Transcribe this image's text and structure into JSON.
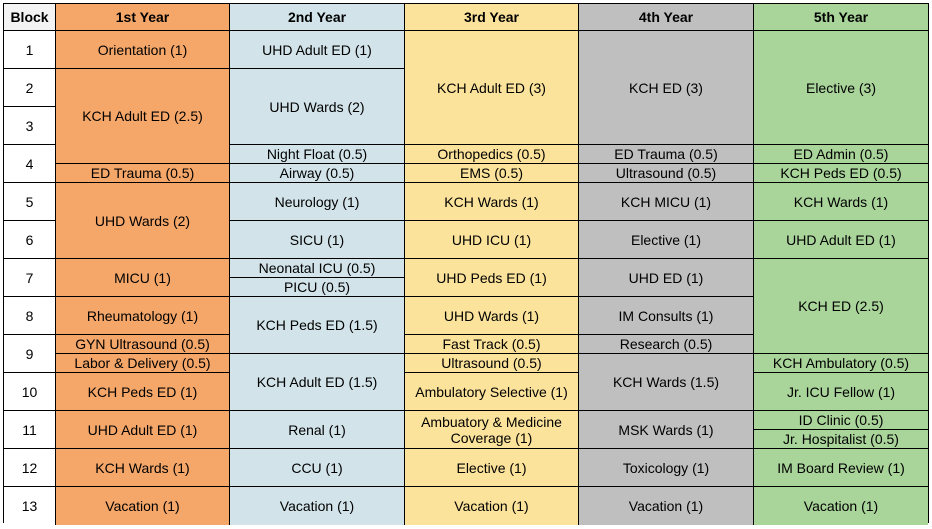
{
  "headers": [
    "Block",
    "1st Year",
    "2nd Year",
    "3rd Year",
    "4th Year",
    "5th Year"
  ],
  "blocks": [
    "1",
    "2",
    "3",
    "4",
    "5",
    "6",
    "7",
    "8",
    "9",
    "10",
    "11",
    "12",
    "13"
  ],
  "year1": {
    "orientation": "Orientation (1)",
    "kch_adult_ed": "KCH Adult ED (2.5)",
    "ed_trauma": "ED Trauma (0.5)",
    "uhd_wards": "UHD Wards (2)",
    "micu": "MICU (1)",
    "rheumatology": "Rheumatology (1)",
    "gyn_ultrasound": "GYN Ultrasound (0.5)",
    "labor_delivery": "Labor & Delivery (0.5)",
    "kch_peds_ed": "KCH Peds ED (1)",
    "uhd_adult_ed": "UHD Adult ED (1)",
    "kch_wards": "KCH Wards (1)",
    "vacation": "Vacation (1)"
  },
  "year2": {
    "uhd_adult_ed": "UHD Adult ED (1)",
    "uhd_wards": "UHD Wards (2)",
    "night_float": "Night Float (0.5)",
    "airway": "Airway (0.5)",
    "neurology": "Neurology (1)",
    "sicu": "SICU (1)",
    "neonatal_icu": "Neonatal ICU (0.5)",
    "picu": "PICU (0.5)",
    "kch_peds_ed": "KCH Peds ED (1.5)",
    "kch_adult_ed": "KCH Adult ED (1.5)",
    "renal": "Renal (1)",
    "ccu": "CCU (1)",
    "vacation": "Vacation (1)"
  },
  "year3": {
    "kch_adult_ed": "KCH Adult ED (3)",
    "orthopedics": "Orthopedics (0.5)",
    "ems": "EMS (0.5)",
    "kch_wards": "KCH Wards (1)",
    "uhd_icu": "UHD ICU (1)",
    "uhd_peds_ed": "UHD Peds ED (1)",
    "uhd_wards": "UHD Wards (1)",
    "fast_track": "Fast Track (0.5)",
    "ultrasound": "Ultrasound (0.5)",
    "ambulatory_selective": "Ambulatory Selective (1)",
    "ambulatory_medicine": "Ambuatory & Medicine Coverage (1)",
    "elective": "Elective (1)",
    "vacation": "Vacation (1)"
  },
  "year4": {
    "kch_ed": "KCH ED (3)",
    "ed_trauma": "ED Trauma (0.5)",
    "ultrasound": "Ultrasound (0.5)",
    "kch_micu": "KCH MICU (1)",
    "elective": "Elective (1)",
    "uhd_ed": "UHD ED (1)",
    "im_consults": "IM Consults (1)",
    "research": "Research (0.5)",
    "kch_wards": "KCH Wards (1.5)",
    "msk_wards": "MSK Wards (1)",
    "toxicology": "Toxicology (1)",
    "vacation": "Vacation (1)"
  },
  "year5": {
    "elective": "Elective (3)",
    "ed_admin": "ED Admin (0.5)",
    "kch_peds_ed": "KCH Peds ED (0.5)",
    "kch_wards": "KCH Wards (1)",
    "uhd_adult_ed": "UHD Adult ED (1)",
    "kch_ed": "KCH ED (2.5)",
    "kch_ambulatory": "KCH Ambulatory (0.5)",
    "jr_icu_fellow": "Jr. ICU Fellow (1)",
    "id_clinic": "ID Clinic (0.5)",
    "jr_hospitalist": "Jr. Hospitalist (0.5)",
    "im_board_review": "IM Board Review (1)",
    "vacation": "Vacation (1)"
  },
  "colors": {
    "year1": "#f5a76a",
    "year2": "#d2e4ea",
    "year3": "#fce39b",
    "year4": "#bfbfbf",
    "year5": "#a9d49a"
  }
}
